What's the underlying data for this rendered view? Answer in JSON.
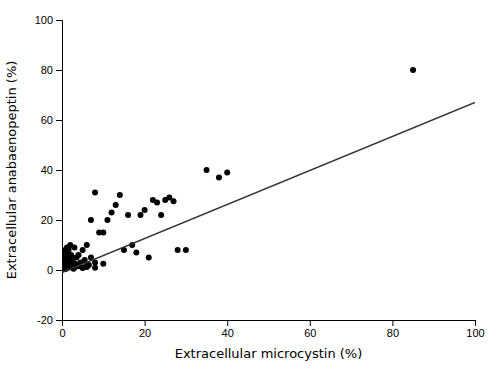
{
  "chart_data": {
    "type": "scatter",
    "xlabel": "Extracellular microcystin (%)",
    "ylabel": "Extracellular anabaenopeptin (%)",
    "series": [
      {
        "type": "scatter",
        "marker": "circle",
        "color": "#000000",
        "x": [
          0.0,
          0.0,
          0.0,
          0.0,
          0.0,
          0.1,
          0.1,
          0.1,
          0.1,
          0.1,
          0.2,
          0.2,
          0.2,
          0.2,
          0.3,
          0.3,
          0.3,
          0.3,
          0.4,
          0.4,
          0.5,
          0.5,
          0.5,
          0.5,
          0.6,
          0.6,
          0.6,
          0.7,
          0.7,
          0.7,
          0.8,
          0.8,
          0.8,
          0.9,
          0.9,
          1.0,
          1.0,
          1.0,
          1.1,
          1.1,
          1.2,
          1.2,
          1.3,
          1.4,
          1.5,
          1.5,
          1.6,
          1.7,
          1.8,
          1.9,
          2.0,
          2.0,
          2.1,
          2.2,
          2.3,
          2.5,
          2.7,
          2.8,
          3.0,
          3.0,
          3.2,
          3.5,
          4.0,
          4.5,
          5.0,
          5.0,
          5.5,
          6.0,
          6.0,
          6.5,
          7.0,
          7.0,
          8.0,
          8.0,
          9.0,
          10.0,
          10.0,
          11.0,
          12.0,
          13.0,
          14.0,
          15.0,
          16.0,
          17.0,
          18.0,
          19.0,
          20.0,
          21.0,
          22.0,
          23.0,
          24.0,
          25.0,
          26.0,
          27.0,
          28.0,
          30.0,
          35.0,
          38.0,
          40.0,
          85.0,
          0.0,
          0.0,
          0.0,
          0.0,
          0.0,
          0.0,
          0.0,
          0.0,
          0.1,
          0.1,
          0.1,
          0.1,
          0.2,
          0.2,
          0.2,
          0.3,
          0.3,
          0.4,
          0.4,
          0.5,
          0.6,
          0.7,
          0.8,
          1.0,
          1.5,
          2.0,
          3.0,
          4.0,
          5.0,
          6.0,
          8.0
        ],
        "values": [
          0.5,
          1.0,
          2.0,
          3.0,
          4.0,
          0.5,
          1.5,
          2.5,
          4.0,
          6.0,
          0.5,
          1.0,
          3.0,
          5.0,
          0.5,
          1.5,
          4.0,
          7.0,
          1.0,
          3.0,
          0.5,
          2.0,
          4.5,
          7.0,
          0.5,
          2.5,
          6.0,
          1.0,
          3.5,
          8.0,
          0.5,
          2.0,
          5.0,
          1.5,
          4.0,
          0.5,
          3.0,
          7.0,
          1.5,
          5.0,
          2.5,
          9.0,
          3.5,
          6.0,
          1.0,
          4.0,
          8.0,
          2.0,
          5.0,
          1.5,
          3.0,
          10.0,
          2.5,
          6.0,
          1.0,
          4.5,
          3.0,
          0.5,
          9.0,
          1.5,
          2.5,
          5.0,
          6.0,
          3.0,
          8.0,
          1.0,
          4.0,
          10.0,
          1.5,
          2.0,
          5.0,
          20.0,
          3.0,
          31.0,
          15.0,
          2.5,
          15.0,
          20.0,
          23.0,
          26.0,
          30.0,
          8.0,
          22.0,
          10.0,
          7.0,
          22.0,
          24.0,
          5.0,
          28.0,
          27.0,
          22.0,
          28.0,
          29.0,
          27.5,
          8.0,
          8.0,
          40.0,
          37.0,
          39.0,
          80.0,
          0.2,
          0.5,
          0.8,
          1.0,
          1.5,
          2.0,
          3.0,
          5.0,
          0.3,
          0.8,
          1.5,
          3.0,
          0.5,
          1.5,
          4.0,
          0.5,
          2.0,
          0.8,
          3.5,
          1.0,
          2.0,
          1.5,
          3.0,
          2.0,
          1.5,
          2.5,
          1.0,
          1.5,
          0.8,
          1.2,
          0.9
        ]
      },
      {
        "type": "line",
        "line_style": "solid",
        "color": "#333333",
        "x": [
          0,
          100
        ],
        "values": [
          -1.0,
          67.0
        ]
      }
    ],
    "xlim": [
      0,
      100
    ],
    "ylim": [
      -20,
      100
    ],
    "xticks": [
      0,
      20,
      40,
      60,
      80,
      100
    ],
    "yticks": [
      -20,
      0,
      20,
      40,
      60,
      80,
      100
    ],
    "grid": false
  }
}
